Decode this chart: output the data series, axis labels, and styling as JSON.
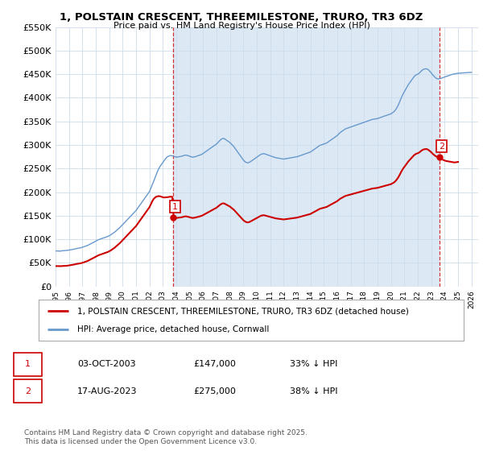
{
  "title": "1, POLSTAIN CRESCENT, THREEMILESTONE, TRURO, TR3 6DZ",
  "subtitle": "Price paid vs. HM Land Registry's House Price Index (HPI)",
  "ylabel_ticks": [
    "£0",
    "£50K",
    "£100K",
    "£150K",
    "£200K",
    "£250K",
    "£300K",
    "£350K",
    "£400K",
    "£450K",
    "£500K",
    "£550K"
  ],
  "ylim": [
    0,
    550000
  ],
  "ytick_vals": [
    0,
    50000,
    100000,
    150000,
    200000,
    250000,
    300000,
    350000,
    400000,
    450000,
    500000,
    550000
  ],
  "xmin": 1995.0,
  "xmax": 2026.5,
  "red_line_color": "#cc0000",
  "blue_line_color": "#6699cc",
  "fill_color": "#dde8f5",
  "t1x": 2003.75,
  "t1y": 147000,
  "t2x": 2023.625,
  "t2y": 275000,
  "legend_label_red": "1, POLSTAIN CRESCENT, THREEMILESTONE, TRURO, TR3 6DZ (detached house)",
  "legend_label_blue": "HPI: Average price, detached house, Cornwall",
  "table_rows": [
    {
      "num": "1",
      "date": "03-OCT-2003",
      "price": "£147,000",
      "hpi": "33% ↓ HPI"
    },
    {
      "num": "2",
      "date": "17-AUG-2023",
      "price": "£275,000",
      "hpi": "38% ↓ HPI"
    }
  ],
  "copyright": "Contains HM Land Registry data © Crown copyright and database right 2025.\nThis data is licensed under the Open Government Licence v3.0.",
  "bg_color": "#ffffff",
  "grid_color": "#ccddee",
  "hpi_blue": [
    [
      1995.0,
      75000
    ],
    [
      1995.1,
      75200
    ],
    [
      1995.2,
      75100
    ],
    [
      1995.3,
      74800
    ],
    [
      1995.4,
      75000
    ],
    [
      1995.5,
      75500
    ],
    [
      1995.6,
      75800
    ],
    [
      1995.7,
      76000
    ],
    [
      1995.8,
      76200
    ],
    [
      1995.9,
      76500
    ],
    [
      1996.0,
      77000
    ],
    [
      1996.1,
      77500
    ],
    [
      1996.2,
      78000
    ],
    [
      1996.3,
      78500
    ],
    [
      1996.4,
      79000
    ],
    [
      1996.5,
      79800
    ],
    [
      1996.6,
      80500
    ],
    [
      1996.7,
      81000
    ],
    [
      1996.8,
      81500
    ],
    [
      1996.9,
      82000
    ],
    [
      1997.0,
      83000
    ],
    [
      1997.1,
      84000
    ],
    [
      1997.2,
      85000
    ],
    [
      1997.3,
      86000
    ],
    [
      1997.4,
      87000
    ],
    [
      1997.5,
      88500
    ],
    [
      1997.6,
      90000
    ],
    [
      1997.7,
      91500
    ],
    [
      1997.8,
      93000
    ],
    [
      1997.9,
      94500
    ],
    [
      1998.0,
      96000
    ],
    [
      1998.1,
      97500
    ],
    [
      1998.2,
      99000
    ],
    [
      1998.3,
      100000
    ],
    [
      1998.4,
      101000
    ],
    [
      1998.5,
      102000
    ],
    [
      1998.6,
      103000
    ],
    [
      1998.7,
      104000
    ],
    [
      1998.8,
      105000
    ],
    [
      1998.9,
      106000
    ],
    [
      1999.0,
      107500
    ],
    [
      1999.1,
      109000
    ],
    [
      1999.2,
      111000
    ],
    [
      1999.3,
      113000
    ],
    [
      1999.4,
      115000
    ],
    [
      1999.5,
      117500
    ],
    [
      1999.6,
      120000
    ],
    [
      1999.7,
      122500
    ],
    [
      1999.8,
      125000
    ],
    [
      1999.9,
      128000
    ],
    [
      2000.0,
      131000
    ],
    [
      2000.1,
      134000
    ],
    [
      2000.2,
      137000
    ],
    [
      2000.3,
      140000
    ],
    [
      2000.4,
      143000
    ],
    [
      2000.5,
      146000
    ],
    [
      2000.6,
      149000
    ],
    [
      2000.7,
      152000
    ],
    [
      2000.8,
      155000
    ],
    [
      2000.9,
      158000
    ],
    [
      2001.0,
      161000
    ],
    [
      2001.1,
      165000
    ],
    [
      2001.2,
      169000
    ],
    [
      2001.3,
      173000
    ],
    [
      2001.4,
      177000
    ],
    [
      2001.5,
      181000
    ],
    [
      2001.6,
      185000
    ],
    [
      2001.7,
      189000
    ],
    [
      2001.8,
      193000
    ],
    [
      2001.9,
      197000
    ],
    [
      2002.0,
      201000
    ],
    [
      2002.1,
      208000
    ],
    [
      2002.2,
      215000
    ],
    [
      2002.3,
      222000
    ],
    [
      2002.4,
      229000
    ],
    [
      2002.5,
      237000
    ],
    [
      2002.6,
      244000
    ],
    [
      2002.7,
      250000
    ],
    [
      2002.8,
      255000
    ],
    [
      2002.9,
      259000
    ],
    [
      2003.0,
      263000
    ],
    [
      2003.1,
      267000
    ],
    [
      2003.2,
      271000
    ],
    [
      2003.3,
      274000
    ],
    [
      2003.4,
      276000
    ],
    [
      2003.5,
      277000
    ],
    [
      2003.6,
      277500
    ],
    [
      2003.7,
      277000
    ],
    [
      2003.8,
      276000
    ],
    [
      2003.9,
      275000
    ],
    [
      2004.0,
      274000
    ],
    [
      2004.1,
      274500
    ],
    [
      2004.2,
      275000
    ],
    [
      2004.3,
      275500
    ],
    [
      2004.4,
      276000
    ],
    [
      2004.5,
      277000
    ],
    [
      2004.6,
      278000
    ],
    [
      2004.7,
      278500
    ],
    [
      2004.8,
      278000
    ],
    [
      2004.9,
      277000
    ],
    [
      2005.0,
      276000
    ],
    [
      2005.1,
      275000
    ],
    [
      2005.2,
      274000
    ],
    [
      2005.3,
      274500
    ],
    [
      2005.4,
      275000
    ],
    [
      2005.5,
      276000
    ],
    [
      2005.6,
      277000
    ],
    [
      2005.7,
      278000
    ],
    [
      2005.8,
      279000
    ],
    [
      2005.9,
      280000
    ],
    [
      2006.0,
      282000
    ],
    [
      2006.1,
      284000
    ],
    [
      2006.2,
      286000
    ],
    [
      2006.3,
      288000
    ],
    [
      2006.4,
      290000
    ],
    [
      2006.5,
      292000
    ],
    [
      2006.6,
      294000
    ],
    [
      2006.7,
      296000
    ],
    [
      2006.8,
      298000
    ],
    [
      2006.9,
      300000
    ],
    [
      2007.0,
      302000
    ],
    [
      2007.1,
      305000
    ],
    [
      2007.2,
      308000
    ],
    [
      2007.3,
      311000
    ],
    [
      2007.4,
      313000
    ],
    [
      2007.5,
      314000
    ],
    [
      2007.6,
      313000
    ],
    [
      2007.7,
      311000
    ],
    [
      2007.8,
      309000
    ],
    [
      2007.9,
      307000
    ],
    [
      2008.0,
      305000
    ],
    [
      2008.1,
      302000
    ],
    [
      2008.2,
      299000
    ],
    [
      2008.3,
      296000
    ],
    [
      2008.4,
      292000
    ],
    [
      2008.5,
      288000
    ],
    [
      2008.6,
      284000
    ],
    [
      2008.7,
      280000
    ],
    [
      2008.8,
      276000
    ],
    [
      2008.9,
      272000
    ],
    [
      2009.0,
      268000
    ],
    [
      2009.1,
      265000
    ],
    [
      2009.2,
      263000
    ],
    [
      2009.3,
      262000
    ],
    [
      2009.4,
      262500
    ],
    [
      2009.5,
      264000
    ],
    [
      2009.6,
      266000
    ],
    [
      2009.7,
      268000
    ],
    [
      2009.8,
      270000
    ],
    [
      2009.9,
      272000
    ],
    [
      2010.0,
      274000
    ],
    [
      2010.1,
      276000
    ],
    [
      2010.2,
      278000
    ],
    [
      2010.3,
      280000
    ],
    [
      2010.4,
      281000
    ],
    [
      2010.5,
      281500
    ],
    [
      2010.6,
      281000
    ],
    [
      2010.7,
      280000
    ],
    [
      2010.8,
      279000
    ],
    [
      2010.9,
      278000
    ],
    [
      2011.0,
      277000
    ],
    [
      2011.1,
      276000
    ],
    [
      2011.2,
      275000
    ],
    [
      2011.3,
      274000
    ],
    [
      2011.4,
      273000
    ],
    [
      2011.5,
      272500
    ],
    [
      2011.6,
      272000
    ],
    [
      2011.7,
      271500
    ],
    [
      2011.8,
      271000
    ],
    [
      2011.9,
      270500
    ],
    [
      2012.0,
      270000
    ],
    [
      2012.1,
      270500
    ],
    [
      2012.2,
      271000
    ],
    [
      2012.3,
      271500
    ],
    [
      2012.4,
      272000
    ],
    [
      2012.5,
      272500
    ],
    [
      2012.6,
      273000
    ],
    [
      2012.7,
      273500
    ],
    [
      2012.8,
      274000
    ],
    [
      2012.9,
      274500
    ],
    [
      2013.0,
      275000
    ],
    [
      2013.1,
      276000
    ],
    [
      2013.2,
      277000
    ],
    [
      2013.3,
      278000
    ],
    [
      2013.4,
      279000
    ],
    [
      2013.5,
      280000
    ],
    [
      2013.6,
      281000
    ],
    [
      2013.7,
      282000
    ],
    [
      2013.8,
      283000
    ],
    [
      2013.9,
      284000
    ],
    [
      2014.0,
      285000
    ],
    [
      2014.1,
      287000
    ],
    [
      2014.2,
      289000
    ],
    [
      2014.3,
      291000
    ],
    [
      2014.4,
      293000
    ],
    [
      2014.5,
      295000
    ],
    [
      2014.6,
      297000
    ],
    [
      2014.7,
      299000
    ],
    [
      2014.8,
      300000
    ],
    [
      2014.9,
      301000
    ],
    [
      2015.0,
      302000
    ],
    [
      2015.1,
      303000
    ],
    [
      2015.2,
      304000
    ],
    [
      2015.3,
      306000
    ],
    [
      2015.4,
      308000
    ],
    [
      2015.5,
      310000
    ],
    [
      2015.6,
      312000
    ],
    [
      2015.7,
      314000
    ],
    [
      2015.8,
      316000
    ],
    [
      2015.9,
      318000
    ],
    [
      2016.0,
      320000
    ],
    [
      2016.1,
      323000
    ],
    [
      2016.2,
      326000
    ],
    [
      2016.3,
      328000
    ],
    [
      2016.4,
      330000
    ],
    [
      2016.5,
      332000
    ],
    [
      2016.6,
      334000
    ],
    [
      2016.7,
      335000
    ],
    [
      2016.8,
      336000
    ],
    [
      2016.9,
      337000
    ],
    [
      2017.0,
      338000
    ],
    [
      2017.1,
      339000
    ],
    [
      2017.2,
      340000
    ],
    [
      2017.3,
      341000
    ],
    [
      2017.4,
      342000
    ],
    [
      2017.5,
      343000
    ],
    [
      2017.6,
      344000
    ],
    [
      2017.7,
      345000
    ],
    [
      2017.8,
      346000
    ],
    [
      2017.9,
      347000
    ],
    [
      2018.0,
      348000
    ],
    [
      2018.1,
      349000
    ],
    [
      2018.2,
      350000
    ],
    [
      2018.3,
      351000
    ],
    [
      2018.4,
      352000
    ],
    [
      2018.5,
      353000
    ],
    [
      2018.6,
      354000
    ],
    [
      2018.7,
      354500
    ],
    [
      2018.8,
      355000
    ],
    [
      2018.9,
      355500
    ],
    [
      2019.0,
      356000
    ],
    [
      2019.1,
      357000
    ],
    [
      2019.2,
      358000
    ],
    [
      2019.3,
      359000
    ],
    [
      2019.4,
      360000
    ],
    [
      2019.5,
      361000
    ],
    [
      2019.6,
      362000
    ],
    [
      2019.7,
      363000
    ],
    [
      2019.8,
      364000
    ],
    [
      2019.9,
      365000
    ],
    [
      2020.0,
      366000
    ],
    [
      2020.1,
      368000
    ],
    [
      2020.2,
      370000
    ],
    [
      2020.3,
      373000
    ],
    [
      2020.4,
      377000
    ],
    [
      2020.5,
      382000
    ],
    [
      2020.6,
      388000
    ],
    [
      2020.7,
      395000
    ],
    [
      2020.8,
      402000
    ],
    [
      2020.9,
      408000
    ],
    [
      2021.0,
      413000
    ],
    [
      2021.1,
      418000
    ],
    [
      2021.2,
      423000
    ],
    [
      2021.3,
      428000
    ],
    [
      2021.4,
      432000
    ],
    [
      2021.5,
      436000
    ],
    [
      2021.6,
      440000
    ],
    [
      2021.7,
      444000
    ],
    [
      2021.8,
      447000
    ],
    [
      2021.9,
      449000
    ],
    [
      2022.0,
      450000
    ],
    [
      2022.1,
      452000
    ],
    [
      2022.2,
      455000
    ],
    [
      2022.3,
      458000
    ],
    [
      2022.4,
      460000
    ],
    [
      2022.5,
      461000
    ],
    [
      2022.6,
      461500
    ],
    [
      2022.7,
      461000
    ],
    [
      2022.8,
      459000
    ],
    [
      2022.9,
      456000
    ],
    [
      2023.0,
      453000
    ],
    [
      2023.1,
      449000
    ],
    [
      2023.2,
      446000
    ],
    [
      2023.3,
      443000
    ],
    [
      2023.4,
      441000
    ],
    [
      2023.5,
      440000
    ],
    [
      2023.6,
      440500
    ],
    [
      2023.7,
      441000
    ],
    [
      2023.8,
      442000
    ],
    [
      2023.9,
      443000
    ],
    [
      2024.0,
      444000
    ],
    [
      2024.1,
      445000
    ],
    [
      2024.2,
      446000
    ],
    [
      2024.3,
      447000
    ],
    [
      2024.4,
      448000
    ],
    [
      2024.5,
      449000
    ],
    [
      2024.6,
      450000
    ],
    [
      2024.7,
      450500
    ],
    [
      2024.8,
      451000
    ],
    [
      2024.9,
      451500
    ],
    [
      2025.0,
      452000
    ],
    [
      2025.5,
      453000
    ],
    [
      2026.0,
      454000
    ]
  ],
  "red_hpi": [
    [
      1995.0,
      43000
    ],
    [
      1995.1,
      43100
    ],
    [
      1995.2,
      43050
    ],
    [
      1995.3,
      42900
    ],
    [
      1995.4,
      43000
    ],
    [
      1995.5,
      43200
    ],
    [
      1995.6,
      43400
    ],
    [
      1995.7,
      43500
    ],
    [
      1995.8,
      43700
    ],
    [
      1995.9,
      44000
    ],
    [
      1996.0,
      44500
    ],
    [
      1996.1,
      45000
    ],
    [
      1996.2,
      45500
    ],
    [
      1996.3,
      46000
    ],
    [
      1996.4,
      46500
    ],
    [
      1996.5,
      47200
    ],
    [
      1996.6,
      47800
    ],
    [
      1996.7,
      48200
    ],
    [
      1996.8,
      48700
    ],
    [
      1996.9,
      49200
    ],
    [
      1997.0,
      50000
    ],
    [
      1997.1,
      51000
    ],
    [
      1997.2,
      52000
    ],
    [
      1997.3,
      53000
    ],
    [
      1997.4,
      54000
    ],
    [
      1997.5,
      55500
    ],
    [
      1997.6,
      57000
    ],
    [
      1997.7,
      58500
    ],
    [
      1997.8,
      60000
    ],
    [
      1997.9,
      61500
    ],
    [
      1998.0,
      63000
    ],
    [
      1998.1,
      64500
    ],
    [
      1998.2,
      66000
    ],
    [
      1998.3,
      67000
    ],
    [
      1998.4,
      68000
    ],
    [
      1998.5,
      69000
    ],
    [
      1998.6,
      70000
    ],
    [
      1998.7,
      71000
    ],
    [
      1998.8,
      72000
    ],
    [
      1998.9,
      73000
    ],
    [
      1999.0,
      74500
    ],
    [
      1999.1,
      76000
    ],
    [
      1999.2,
      78000
    ],
    [
      1999.3,
      80000
    ],
    [
      1999.4,
      82000
    ],
    [
      1999.5,
      84500
    ],
    [
      1999.6,
      87000
    ],
    [
      1999.7,
      89500
    ],
    [
      1999.8,
      92000
    ],
    [
      1999.9,
      95000
    ],
    [
      2000.0,
      98000
    ],
    [
      2000.1,
      101000
    ],
    [
      2000.2,
      104000
    ],
    [
      2000.3,
      107000
    ],
    [
      2000.4,
      110000
    ],
    [
      2000.5,
      113000
    ],
    [
      2000.6,
      116000
    ],
    [
      2000.7,
      119000
    ],
    [
      2000.8,
      122000
    ],
    [
      2000.9,
      125000
    ],
    [
      2001.0,
      128000
    ],
    [
      2001.1,
      132000
    ],
    [
      2001.2,
      136000
    ],
    [
      2001.3,
      140000
    ],
    [
      2001.4,
      144000
    ],
    [
      2001.5,
      148000
    ],
    [
      2001.6,
      152000
    ],
    [
      2001.7,
      156000
    ],
    [
      2001.8,
      160000
    ],
    [
      2001.9,
      164000
    ],
    [
      2002.0,
      168000
    ],
    [
      2002.1,
      174000
    ],
    [
      2002.2,
      180000
    ],
    [
      2002.3,
      185000
    ],
    [
      2002.4,
      188000
    ],
    [
      2002.5,
      190000
    ],
    [
      2002.6,
      191000
    ],
    [
      2002.7,
      191500
    ],
    [
      2002.8,
      191000
    ],
    [
      2002.9,
      190000
    ],
    [
      2003.0,
      189000
    ],
    [
      2003.1,
      188500
    ],
    [
      2003.2,
      188800
    ],
    [
      2003.3,
      189000
    ],
    [
      2003.4,
      189500
    ],
    [
      2003.5,
      190000
    ],
    [
      2003.6,
      190200
    ],
    [
      2003.7,
      190000
    ],
    [
      2003.8,
      147000
    ]
  ],
  "red_after": [
    [
      2023.625,
      275000
    ],
    [
      2023.7,
      273000
    ],
    [
      2023.8,
      270000
    ],
    [
      2023.9,
      268000
    ],
    [
      2024.0,
      267000
    ],
    [
      2024.1,
      266000
    ],
    [
      2024.2,
      265500
    ],
    [
      2024.3,
      265000
    ],
    [
      2024.4,
      264500
    ],
    [
      2024.5,
      264000
    ],
    [
      2024.6,
      263500
    ],
    [
      2024.7,
      263000
    ],
    [
      2024.8,
      263000
    ],
    [
      2024.9,
      263500
    ],
    [
      2025.0,
      264000
    ]
  ]
}
